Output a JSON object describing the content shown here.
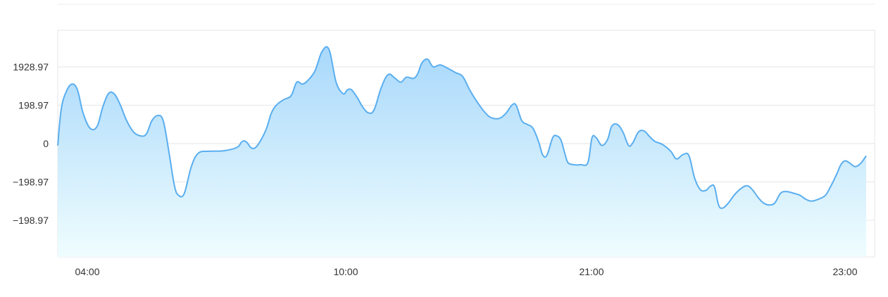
{
  "colors": {
    "line": "#5aaeef",
    "area_top": "#a8d8fb",
    "area_bottom": "#effdfe",
    "grid": "#e6e6e6",
    "axis_text": "#333333",
    "border": "#e2e2e2"
  },
  "chart_data": {
    "type": "area",
    "title": "",
    "xlabel": "",
    "ylabel": "",
    "grid": true,
    "x_ticks": [
      "04:00",
      "10:00",
      "21:00",
      "23:00"
    ],
    "y_ticks": [
      "1928.97",
      "198.97",
      "0",
      "−198.97",
      "−198.97"
    ],
    "y_ticks_note_values": [
      2,
      1,
      0,
      -1,
      -2
    ],
    "ylim": [
      -2.95,
      2.95
    ],
    "xlim": [
      0,
      1150
    ],
    "series": [
      {
        "name": "",
        "points": [
          [
            0,
            -0.05
          ],
          [
            5,
            0.9
          ],
          [
            12,
            1.35
          ],
          [
            20,
            1.55
          ],
          [
            28,
            1.4
          ],
          [
            36,
            0.8
          ],
          [
            46,
            0.4
          ],
          [
            56,
            0.45
          ],
          [
            64,
            0.95
          ],
          [
            72,
            1.3
          ],
          [
            80,
            1.3
          ],
          [
            88,
            1.05
          ],
          [
            98,
            0.6
          ],
          [
            108,
            0.3
          ],
          [
            118,
            0.2
          ],
          [
            126,
            0.25
          ],
          [
            134,
            0.6
          ],
          [
            142,
            0.73
          ],
          [
            150,
            0.6
          ],
          [
            158,
            -0.2
          ],
          [
            166,
            -1.1
          ],
          [
            172,
            -1.35
          ],
          [
            180,
            -1.3
          ],
          [
            190,
            -0.6
          ],
          [
            200,
            -0.25
          ],
          [
            215,
            -0.2
          ],
          [
            235,
            -0.19
          ],
          [
            255,
            -0.1
          ],
          [
            262,
            0.05
          ],
          [
            268,
            0.05
          ],
          [
            276,
            -0.12
          ],
          [
            284,
            -0.05
          ],
          [
            296,
            0.35
          ],
          [
            304,
            0.8
          ],
          [
            312,
            1.02
          ],
          [
            322,
            1.15
          ],
          [
            332,
            1.25
          ],
          [
            340,
            1.6
          ],
          [
            348,
            1.55
          ],
          [
            356,
            1.65
          ],
          [
            366,
            1.9
          ],
          [
            376,
            2.4
          ],
          [
            386,
            2.45
          ],
          [
            396,
            1.6
          ],
          [
            406,
            1.3
          ],
          [
            412,
            1.4
          ],
          [
            418,
            1.4
          ],
          [
            426,
            1.2
          ],
          [
            434,
            0.95
          ],
          [
            442,
            0.8
          ],
          [
            450,
            0.88
          ],
          [
            460,
            1.45
          ],
          [
            470,
            1.8
          ],
          [
            480,
            1.7
          ],
          [
            488,
            1.6
          ],
          [
            496,
            1.73
          ],
          [
            506,
            1.7
          ],
          [
            512,
            1.82
          ],
          [
            518,
            2.1
          ],
          [
            526,
            2.2
          ],
          [
            534,
            2.0
          ],
          [
            544,
            2.05
          ],
          [
            556,
            1.95
          ],
          [
            566,
            1.85
          ],
          [
            576,
            1.75
          ],
          [
            586,
            1.4
          ],
          [
            596,
            1.1
          ],
          [
            606,
            0.85
          ],
          [
            614,
            0.7
          ],
          [
            622,
            0.65
          ],
          [
            630,
            0.67
          ],
          [
            638,
            0.8
          ],
          [
            646,
            1.0
          ],
          [
            652,
            1.0
          ],
          [
            660,
            0.6
          ],
          [
            668,
            0.5
          ],
          [
            676,
            0.4
          ],
          [
            684,
            0.05
          ],
          [
            690,
            -0.3
          ],
          [
            696,
            -0.3
          ],
          [
            704,
            0.15
          ],
          [
            710,
            0.2
          ],
          [
            716,
            0.08
          ],
          [
            722,
            -0.3
          ],
          [
            726,
            -0.5
          ],
          [
            734,
            -0.55
          ],
          [
            744,
            -0.55
          ],
          [
            754,
            -0.5
          ],
          [
            760,
            0.15
          ],
          [
            766,
            0.15
          ],
          [
            774,
            -0.05
          ],
          [
            782,
            0.1
          ],
          [
            788,
            0.45
          ],
          [
            796,
            0.5
          ],
          [
            804,
            0.3
          ],
          [
            812,
            -0.05
          ],
          [
            818,
            0.02
          ],
          [
            826,
            0.3
          ],
          [
            834,
            0.33
          ],
          [
            842,
            0.18
          ],
          [
            850,
            0.05
          ],
          [
            860,
            -0.02
          ],
          [
            872,
            -0.2
          ],
          [
            880,
            -0.4
          ],
          [
            890,
            -0.28
          ],
          [
            898,
            -0.32
          ],
          [
            906,
            -0.9
          ],
          [
            914,
            -1.2
          ],
          [
            922,
            -1.22
          ],
          [
            928,
            -1.12
          ],
          [
            934,
            -1.12
          ],
          [
            940,
            -1.6
          ],
          [
            946,
            -1.68
          ],
          [
            954,
            -1.55
          ],
          [
            962,
            -1.35
          ],
          [
            970,
            -1.2
          ],
          [
            980,
            -1.1
          ],
          [
            988,
            -1.2
          ],
          [
            996,
            -1.4
          ],
          [
            1004,
            -1.55
          ],
          [
            1012,
            -1.6
          ],
          [
            1020,
            -1.55
          ],
          [
            1028,
            -1.3
          ],
          [
            1036,
            -1.25
          ],
          [
            1048,
            -1.3
          ],
          [
            1056,
            -1.35
          ],
          [
            1064,
            -1.45
          ],
          [
            1072,
            -1.5
          ],
          [
            1082,
            -1.45
          ],
          [
            1092,
            -1.35
          ],
          [
            1100,
            -1.1
          ],
          [
            1108,
            -0.8
          ],
          [
            1114,
            -0.55
          ],
          [
            1120,
            -0.45
          ],
          [
            1126,
            -0.5
          ],
          [
            1134,
            -0.6
          ],
          [
            1142,
            -0.52
          ],
          [
            1150,
            -0.32
          ]
        ]
      }
    ]
  }
}
